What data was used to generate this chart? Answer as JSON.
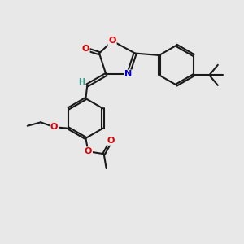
{
  "bg_color": "#e8e8e8",
  "bond_color": "#1a1a1a",
  "bond_width": 1.5,
  "dbo": 0.055,
  "atom_colors": {
    "O": "#dd0000",
    "N": "#0000cc",
    "H": "#3a9a8a",
    "C": "#1a1a1a"
  }
}
